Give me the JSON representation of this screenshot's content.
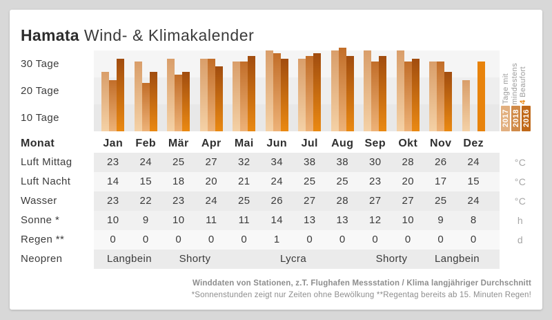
{
  "title": {
    "brand": "Hamata",
    "rest": " Wind- & Klimakalender"
  },
  "y_axis": {
    "labels": [
      "30 Tage",
      "20 Tage",
      "10 Tage"
    ]
  },
  "chart_data": {
    "type": "bar",
    "title": "Tage mit mindestens 4 Beaufort",
    "categories": [
      "Jan",
      "Feb",
      "Mär",
      "Apr",
      "Mai",
      "Jun",
      "Jul",
      "Aug",
      "Sep",
      "Okt",
      "Nov",
      "Dez"
    ],
    "ylabel": "Tage",
    "ylim": [
      0,
      31
    ],
    "ytick_labels": [
      "30 Tage",
      "20 Tage",
      "10 Tage"
    ],
    "grid": "horizontal-bands",
    "legend_position": "right-rotated",
    "series": [
      {
        "name": "2017",
        "color_top": "#d99e6a",
        "color_bottom": "#f4d1a6",
        "values": [
          22,
          26,
          27,
          27,
          26,
          30,
          27,
          30,
          30,
          30,
          26,
          19
        ]
      },
      {
        "name": "2018",
        "color_top": "#c26e29",
        "color_bottom": "#edb278",
        "values": [
          19,
          18,
          21,
          27,
          26,
          29,
          28,
          31,
          26,
          26,
          26,
          null
        ]
      },
      {
        "name": "2016",
        "color_top": "#a14d10",
        "color_bottom": "#ea8912",
        "values": [
          27,
          22,
          22,
          24,
          28,
          27,
          29,
          28,
          28,
          27,
          22,
          26
        ]
      }
    ],
    "bar_overrides": [
      {
        "series": 2,
        "month": 11,
        "flat_color": "#e8830c"
      }
    ],
    "legend": {
      "line1": "Tage mit",
      "line2": "mindestens",
      "line3_number": "4",
      "line3_text": " Beaufort",
      "years": [
        {
          "label": "2017",
          "color": "#e2b080"
        },
        {
          "label": "2018",
          "color": "#d08a48"
        },
        {
          "label": "2016",
          "color": "#c06818"
        }
      ]
    }
  },
  "table": {
    "month_header_label": "Monat",
    "rows": [
      {
        "key": "luft-mittag",
        "label": "Luft Mittag",
        "unit": "°C",
        "values": [
          "23",
          "24",
          "25",
          "27",
          "32",
          "34",
          "38",
          "38",
          "30",
          "28",
          "26",
          "24"
        ]
      },
      {
        "key": "luft-nacht",
        "label": "Luft Nacht",
        "unit": "°C",
        "values": [
          "14",
          "15",
          "18",
          "20",
          "21",
          "24",
          "25",
          "25",
          "23",
          "20",
          "17",
          "15"
        ]
      },
      {
        "key": "wasser",
        "label": "Wasser",
        "unit": "°C",
        "values": [
          "23",
          "22",
          "23",
          "24",
          "25",
          "26",
          "27",
          "28",
          "27",
          "27",
          "25",
          "24"
        ]
      },
      {
        "key": "sonne",
        "label": "Sonne *",
        "unit": "h",
        "values": [
          "10",
          "9",
          "10",
          "11",
          "11",
          "14",
          "13",
          "13",
          "12",
          "10",
          "9",
          "8"
        ]
      },
      {
        "key": "regen",
        "label": "Regen **",
        "unit": "d",
        "values": [
          "0",
          "0",
          "0",
          "0",
          "0",
          "1",
          "0",
          "0",
          "0",
          "0",
          "0",
          "0"
        ]
      }
    ],
    "neopren": {
      "label": "Neopren",
      "segments": [
        {
          "text": "Langbein",
          "start": 1,
          "span": 2
        },
        {
          "text": "Shorty",
          "start": 3,
          "span": 2
        },
        {
          "text": "Lycra",
          "start": 6,
          "span": 2
        },
        {
          "text": "Shorty",
          "start": 9,
          "span": 2
        },
        {
          "text": "Langbein",
          "start": 11,
          "span": 2
        }
      ]
    }
  },
  "footer": {
    "line1": "Winddaten von Stationen, z.T. Flughafen Messstation / Klima langjähriger Durchschnitt",
    "line2": "*Sonnenstunden zeigt nur Zeiten ohne Bewölkung  **Regentag bereits ab 15. Minuten Regen!"
  }
}
